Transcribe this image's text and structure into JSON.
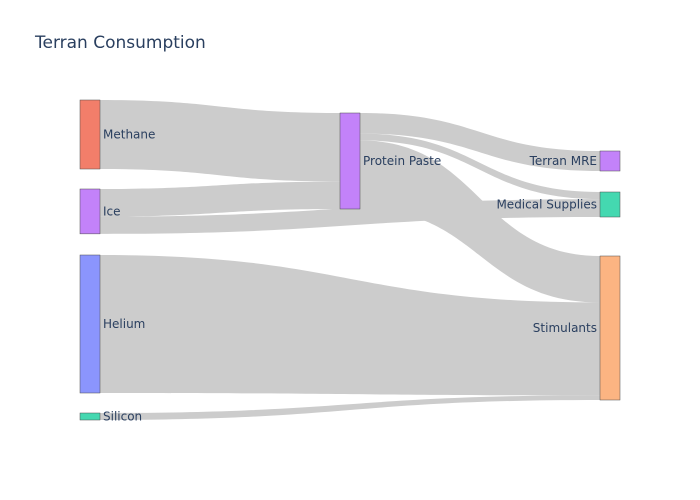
{
  "title": "Terran Consumption",
  "chart_data": {
    "type": "sankey",
    "title": "Terran Consumption",
    "nodes": [
      {
        "id": "methane",
        "label": "Methane",
        "color": "#f27863",
        "column": 0
      },
      {
        "id": "ice",
        "label": "Ice",
        "color": "#c07cf9",
        "column": 0
      },
      {
        "id": "helium",
        "label": "Helium",
        "color": "#8590fd",
        "column": 0
      },
      {
        "id": "silicon",
        "label": "Silicon",
        "color": "#3ad6ac",
        "column": 0
      },
      {
        "id": "protein_paste",
        "label": "Protein Paste",
        "color": "#c07cf9",
        "column": 1
      },
      {
        "id": "terran_mre",
        "label": "Terran MRE",
        "color": "#c07cf9",
        "column": 2
      },
      {
        "id": "medical_supplies",
        "label": "Medical Supplies",
        "color": "#3ad6ac",
        "column": 2
      },
      {
        "id": "stimulants",
        "label": "Stimulants",
        "color": "#fcb07c",
        "column": 2
      }
    ],
    "links": [
      {
        "source": "methane",
        "target": "protein_paste",
        "value": 20
      },
      {
        "source": "ice",
        "target": "protein_paste",
        "value": 8
      },
      {
        "source": "ice",
        "target": "medical_supplies",
        "value": 5
      },
      {
        "source": "helium",
        "target": "stimulants",
        "value": 40
      },
      {
        "source": "silicon",
        "target": "stimulants",
        "value": 2
      },
      {
        "source": "protein_paste",
        "target": "terran_mre",
        "value": 6
      },
      {
        "source": "protein_paste",
        "target": "medical_supplies",
        "value": 2
      },
      {
        "source": "protein_paste",
        "target": "stimulants",
        "value": 20
      }
    ]
  }
}
